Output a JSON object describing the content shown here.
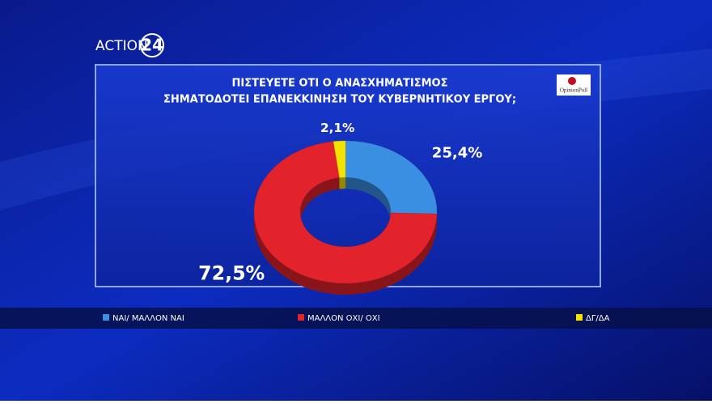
{
  "brand": {
    "name": "ACTION",
    "number": "24"
  },
  "source": "OpinionPoll",
  "chart_data": {
    "type": "donut",
    "title": [
      "ΠΙΣΤΕΥΕΤΕ ΟΤΙ Ο ΑΝΑΣΧΗΜΑΤΙΣΜΟΣ",
      "ΣΗΜΑΤΟΔΟΤΕΙ ΕΠΑΝΕΚΚΙΝΗΣΗ ΤΟΥ ΚΥΒΕΡΝΗΤΙΚΟΥ ΕΡΓΟΥ;"
    ],
    "categories": [
      "ΝΑΙ/ ΜΑΛΛΟΝ ΝΑΙ",
      "ΜΑΛΛΟΝ ΟΧΙ/ ΟΧΙ",
      "ΔΓ/ΔΑ"
    ],
    "values": [
      25.4,
      72.5,
      2.1
    ],
    "value_labels": [
      "25,4%",
      "72,5%",
      "2,1%"
    ],
    "colors": [
      "#3b8fe2",
      "#e3232c",
      "#f2e300"
    ]
  }
}
